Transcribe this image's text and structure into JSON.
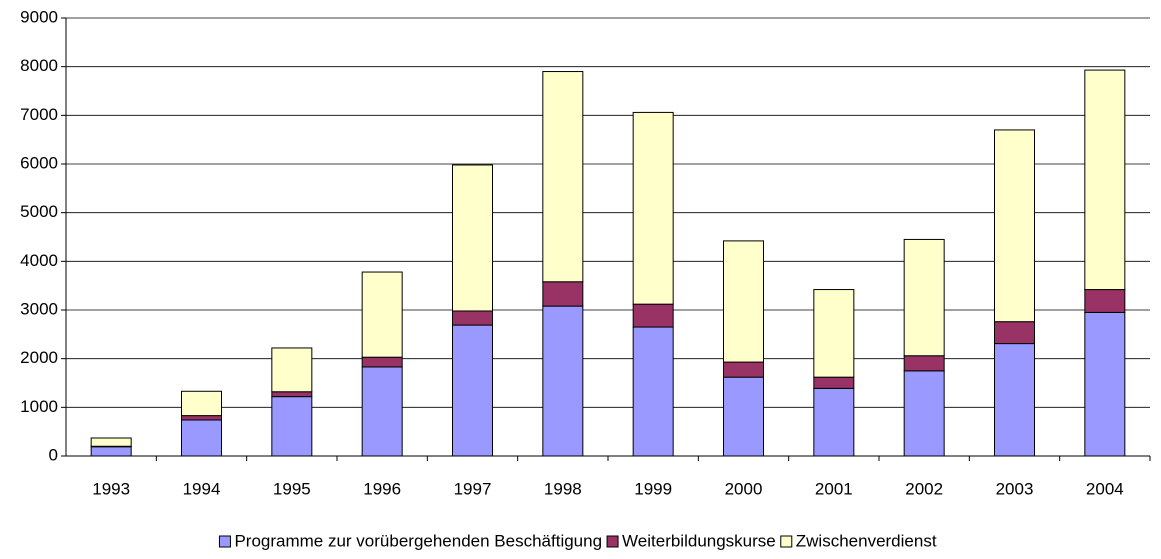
{
  "chart_data": {
    "type": "stacked_bar",
    "categories": [
      "1993",
      "1994",
      "1995",
      "1996",
      "1997",
      "1998",
      "1999",
      "2000",
      "2001",
      "2002",
      "2003",
      "2004"
    ],
    "series": [
      {
        "name": "Programme zur vorübergehenden Beschäftigung",
        "color": "#9999ff",
        "values": [
          190,
          740,
          1220,
          1830,
          2690,
          3080,
          2650,
          1620,
          1390,
          1750,
          2310,
          2950
        ]
      },
      {
        "name": "Weiterbildungskurse",
        "color": "#993366",
        "values": [
          10,
          90,
          100,
          200,
          290,
          500,
          470,
          310,
          230,
          310,
          450,
          470
        ]
      },
      {
        "name": "Zwischenverdienst",
        "color": "#ffffcc",
        "values": [
          170,
          500,
          900,
          1750,
          3000,
          4320,
          3940,
          2490,
          1800,
          2390,
          3940,
          4510
        ]
      }
    ],
    "ylim": [
      0,
      9000
    ],
    "yticks": [
      0,
      1000,
      2000,
      3000,
      4000,
      5000,
      6000,
      7000,
      8000,
      9000
    ],
    "grid": true,
    "legend": "bottom"
  }
}
